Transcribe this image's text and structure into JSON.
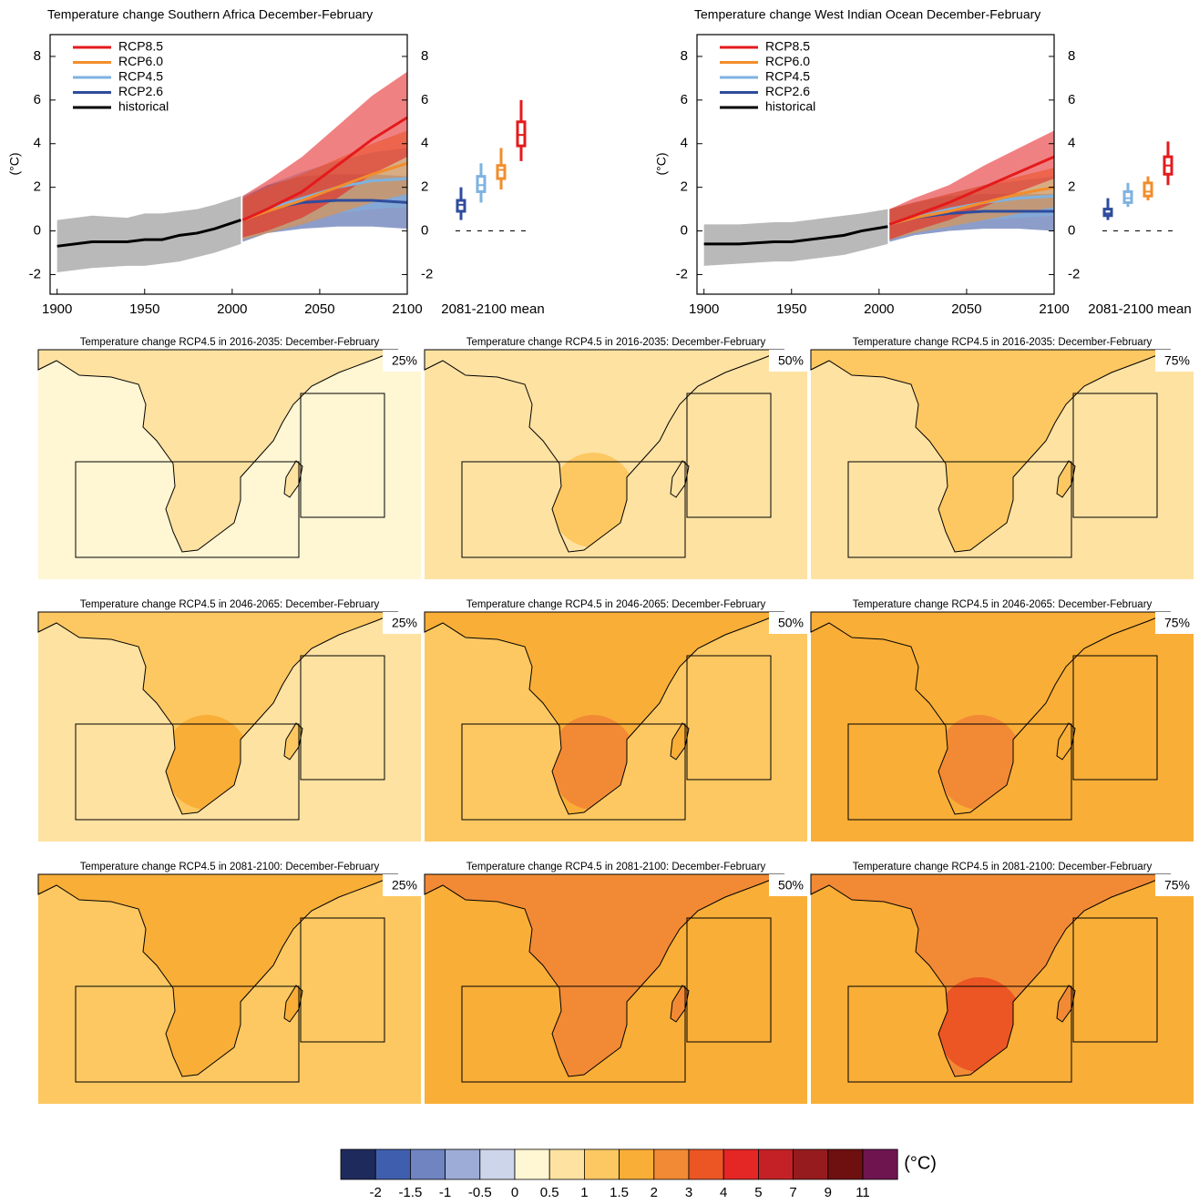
{
  "timeseries": [
    {
      "type": "line",
      "title": "Temperature change Southern Africa December-February",
      "ylabel": "(°C)",
      "box_label": "2081-2100 mean",
      "xlim": [
        1896,
        2100
      ],
      "xticks": [
        1900,
        1950,
        2000,
        2050,
        2100
      ],
      "ylim": [
        -2.9,
        9
      ],
      "yticks": [
        -2,
        0,
        2,
        4,
        6,
        8
      ],
      "legend": "upper left",
      "series": [
        {
          "name": "RCP8.5",
          "color": "#e41a1c",
          "x": [
            2006,
            2020,
            2040,
            2060,
            2080,
            2100
          ],
          "values": [
            0.5,
            1.0,
            1.8,
            3.0,
            4.2,
            5.2
          ],
          "low": [
            -0.3,
            0.0,
            0.6,
            1.5,
            2.6,
            3.4
          ],
          "high": [
            1.6,
            2.3,
            3.4,
            4.8,
            6.2,
            7.3
          ],
          "summary": [
            3.2,
            3.9,
            4.4,
            5.0,
            6.0
          ]
        },
        {
          "name": "RCP6.0",
          "color": "#f28d2c",
          "x": [
            2006,
            2020,
            2040,
            2060,
            2080,
            2100
          ],
          "values": [
            0.5,
            0.9,
            1.4,
            2.0,
            2.6,
            3.1
          ],
          "low": [
            -0.4,
            -0.1,
            0.3,
            0.8,
            1.3,
            1.7
          ],
          "high": [
            1.5,
            2.0,
            2.6,
            3.3,
            4.0,
            4.6
          ],
          "summary": [
            1.9,
            2.4,
            2.8,
            3.0,
            3.8
          ]
        },
        {
          "name": "RCP4.5",
          "color": "#7fb2e0",
          "x": [
            2006,
            2020,
            2040,
            2060,
            2080,
            2100
          ],
          "values": [
            0.5,
            1.0,
            1.5,
            2.0,
            2.3,
            2.4
          ],
          "low": [
            -0.4,
            0.0,
            0.4,
            0.8,
            1.0,
            1.1
          ],
          "high": [
            1.6,
            2.1,
            2.7,
            3.2,
            3.6,
            3.8
          ],
          "summary": [
            1.3,
            1.8,
            2.1,
            2.5,
            3.1
          ]
        },
        {
          "name": "RCP2.6",
          "color": "#2f4c9c",
          "x": [
            2006,
            2020,
            2040,
            2060,
            2080,
            2100
          ],
          "values": [
            0.5,
            1.0,
            1.3,
            1.4,
            1.4,
            1.3
          ],
          "low": [
            -0.5,
            -0.1,
            0.1,
            0.2,
            0.2,
            0.1
          ],
          "high": [
            1.5,
            2.1,
            2.5,
            2.6,
            2.6,
            2.5
          ],
          "summary": [
            0.5,
            0.9,
            1.2,
            1.4,
            2.0
          ]
        },
        {
          "name": "historical",
          "color": "#000000",
          "band_color": "#808080",
          "x": [
            1900,
            1920,
            1940,
            1950,
            1960,
            1970,
            1980,
            1990,
            2005
          ],
          "values": [
            -0.7,
            -0.5,
            -0.5,
            -0.4,
            -0.4,
            -0.2,
            -0.1,
            0.1,
            0.5
          ],
          "low": [
            -1.9,
            -1.7,
            -1.6,
            -1.6,
            -1.5,
            -1.4,
            -1.2,
            -1.0,
            -0.6
          ],
          "high": [
            0.5,
            0.7,
            0.6,
            0.8,
            0.8,
            0.9,
            1.0,
            1.2,
            1.6
          ]
        }
      ]
    },
    {
      "type": "line",
      "title": "Temperature change West Indian Ocean December-February",
      "ylabel": "(°C)",
      "box_label": "2081-2100 mean",
      "xlim": [
        1896,
        2100
      ],
      "xticks": [
        1900,
        1950,
        2000,
        2050,
        2100
      ],
      "ylim": [
        -2.9,
        9
      ],
      "yticks": [
        -2,
        0,
        2,
        4,
        6,
        8
      ],
      "legend": "upper left",
      "series": [
        {
          "name": "RCP8.5",
          "color": "#e41a1c",
          "x": [
            2006,
            2020,
            2040,
            2060,
            2080,
            2100
          ],
          "values": [
            0.3,
            0.7,
            1.3,
            2.0,
            2.7,
            3.4
          ],
          "low": [
            -0.4,
            0.0,
            0.5,
            1.1,
            1.8,
            2.4
          ],
          "high": [
            1.0,
            1.5,
            2.1,
            3.0,
            3.8,
            4.6
          ],
          "summary": [
            2.1,
            2.6,
            3.0,
            3.4,
            4.1
          ]
        },
        {
          "name": "RCP6.0",
          "color": "#f28d2c",
          "x": [
            2006,
            2020,
            2040,
            2060,
            2080,
            2100
          ],
          "values": [
            0.3,
            0.6,
            0.9,
            1.3,
            1.7,
            2.0
          ],
          "low": [
            -0.4,
            -0.1,
            0.2,
            0.5,
            0.8,
            1.1
          ],
          "high": [
            1.0,
            1.3,
            1.7,
            2.1,
            2.5,
            2.9
          ],
          "summary": [
            1.4,
            1.6,
            1.8,
            2.2,
            2.5
          ]
        },
        {
          "name": "RCP4.5",
          "color": "#7fb2e0",
          "x": [
            2006,
            2020,
            2040,
            2060,
            2080,
            2100
          ],
          "values": [
            0.3,
            0.6,
            1.0,
            1.3,
            1.5,
            1.6
          ],
          "low": [
            -0.4,
            -0.1,
            0.2,
            0.5,
            0.6,
            0.7
          ],
          "high": [
            1.0,
            1.3,
            1.7,
            2.1,
            2.3,
            2.5
          ],
          "summary": [
            1.1,
            1.3,
            1.5,
            1.8,
            2.2
          ]
        },
        {
          "name": "RCP2.6",
          "color": "#2f4c9c",
          "x": [
            2006,
            2020,
            2040,
            2060,
            2080,
            2100
          ],
          "values": [
            0.3,
            0.6,
            0.8,
            0.9,
            0.9,
            0.9
          ],
          "low": [
            -0.5,
            -0.2,
            0.0,
            0.1,
            0.1,
            0.0
          ],
          "high": [
            1.0,
            1.3,
            1.6,
            1.7,
            1.7,
            1.7
          ],
          "summary": [
            0.5,
            0.7,
            0.8,
            1.0,
            1.5
          ]
        },
        {
          "name": "historical",
          "color": "#000000",
          "band_color": "#808080",
          "x": [
            1900,
            1920,
            1940,
            1950,
            1960,
            1970,
            1980,
            1990,
            2005
          ],
          "values": [
            -0.6,
            -0.6,
            -0.5,
            -0.5,
            -0.4,
            -0.3,
            -0.2,
            0.0,
            0.2
          ],
          "low": [
            -1.6,
            -1.5,
            -1.4,
            -1.4,
            -1.3,
            -1.2,
            -1.1,
            -0.9,
            -0.6
          ],
          "high": [
            0.3,
            0.3,
            0.4,
            0.4,
            0.5,
            0.6,
            0.7,
            0.8,
            1.0
          ]
        }
      ]
    }
  ],
  "maps": [
    {
      "title": "Temperature change RCP4.5 in 2016-2035: December-February",
      "label": "25%",
      "ocean": 0.3,
      "land": 0.7,
      "core": 0.7
    },
    {
      "title": "Temperature change RCP4.5 in 2016-2035: December-February",
      "label": "50%",
      "ocean": 0.7,
      "land": 0.8,
      "core": 1.2
    },
    {
      "title": "Temperature change RCP4.5 in 2016-2035: December-February",
      "label": "75%",
      "ocean": 0.8,
      "land": 1.2,
      "core": 1.2
    },
    {
      "title": "Temperature change RCP4.5 in 2046-2065: December-February",
      "label": "25%",
      "ocean": 0.8,
      "land": 1.2,
      "core": 1.7
    },
    {
      "title": "Temperature change RCP4.5 in 2046-2065: December-February",
      "label": "50%",
      "ocean": 1.2,
      "land": 1.7,
      "core": 2.5
    },
    {
      "title": "Temperature change RCP4.5 in 2046-2065: December-February",
      "label": "75%",
      "ocean": 1.7,
      "land": 1.8,
      "core": 2.5
    },
    {
      "title": "Temperature change RCP4.5 in 2081-2100: December-February",
      "label": "25%",
      "ocean": 1.2,
      "land": 1.7,
      "core": 1.8
    },
    {
      "title": "Temperature change RCP4.5 in 2081-2100: December-February",
      "label": "50%",
      "ocean": 1.7,
      "land": 2.2,
      "core": 2.5
    },
    {
      "title": "Temperature change RCP4.5 in 2081-2100: December-February",
      "label": "75%",
      "ocean": 1.8,
      "land": 2.5,
      "core": 3.5
    }
  ],
  "colorbar": {
    "unit": "(°C)",
    "boundaries": [
      -2,
      -1.5,
      -1,
      -0.5,
      0,
      0.5,
      1,
      1.5,
      2,
      3,
      4,
      5,
      7,
      9,
      11
    ],
    "colors": [
      "#1f2a5c",
      "#3f5fae",
      "#6f84c0",
      "#9dacd6",
      "#cdd5ea",
      "#fff6d3",
      "#fee2a2",
      "#fdc862",
      "#f9ae37",
      "#f28a35",
      "#eb5624",
      "#e42625",
      "#c42126",
      "#961b1e",
      "#6e1010",
      "#6e1550"
    ]
  }
}
